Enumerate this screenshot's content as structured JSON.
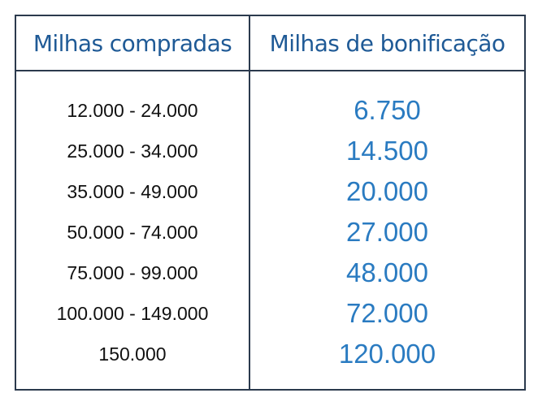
{
  "table": {
    "headers": [
      "Milhas compradas",
      "Milhas de bonificação"
    ],
    "rows": [
      {
        "purchased": "12.000 - 24.000",
        "bonus": "6.750"
      },
      {
        "purchased": "25.000 - 34.000",
        "bonus": "14.500"
      },
      {
        "purchased": "35.000 - 49.000",
        "bonus": "20.000"
      },
      {
        "purchased": "50.000 - 74.000",
        "bonus": "27.000"
      },
      {
        "purchased": "75.000 - 99.000",
        "bonus": "48.000"
      },
      {
        "purchased": "100.000 - 149.000",
        "bonus": "72.000"
      },
      {
        "purchased": "150.000",
        "bonus": "120.000"
      }
    ]
  },
  "colors": {
    "border": "#2b3a4d",
    "header_text": "#1f5a96",
    "bonus_text": "#2a7bc1",
    "range_text": "#111111"
  }
}
